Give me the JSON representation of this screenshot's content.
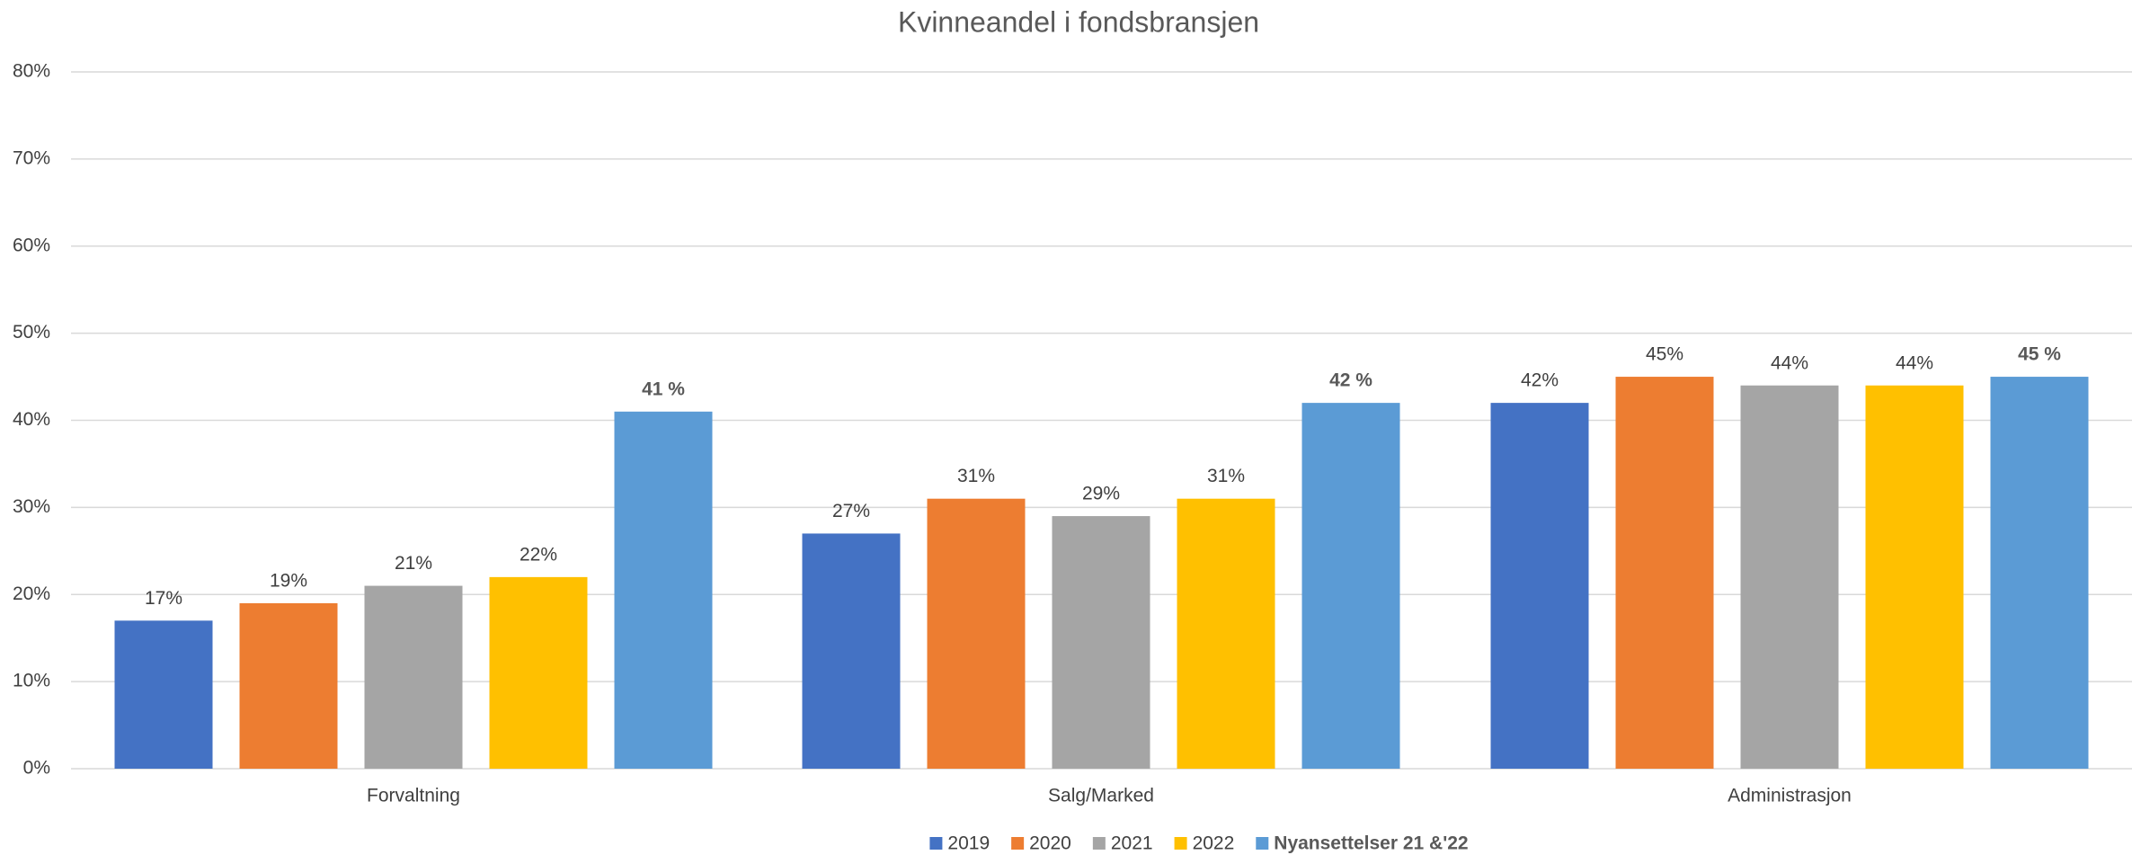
{
  "chart_data": {
    "type": "bar",
    "title": "Kvinneandel i fondsbransjen",
    "categories": [
      "Forvaltning",
      "Salg/Marked",
      "Administrasjon"
    ],
    "series": [
      {
        "name": "2019",
        "color": "#4472c4",
        "values": [
          17,
          27,
          42
        ],
        "value_labels": [
          "17%",
          "27%",
          "42%"
        ]
      },
      {
        "name": "2020",
        "color": "#ed7d31",
        "values": [
          19,
          31,
          45
        ],
        "value_labels": [
          "19%",
          "31%",
          "45%"
        ]
      },
      {
        "name": "2021",
        "color": "#a5a5a5",
        "values": [
          21,
          29,
          44
        ],
        "value_labels": [
          "21%",
          "29%",
          "44%"
        ]
      },
      {
        "name": "2022",
        "color": "#ffc000",
        "values": [
          22,
          31,
          44
        ],
        "value_labels": [
          "22%",
          "31%",
          "44%"
        ]
      },
      {
        "name": "Nyansettelser 21 &'22",
        "color": "#5b9bd5",
        "values": [
          41,
          42,
          45
        ],
        "value_labels": [
          "41 %",
          "42 %",
          "45 %"
        ]
      }
    ],
    "ylim": [
      0,
      80
    ],
    "yticks": [
      {
        "value": 0,
        "label": "0%"
      },
      {
        "value": 10,
        "label": "10%"
      },
      {
        "value": 20,
        "label": "20%"
      },
      {
        "value": 30,
        "label": "30%"
      },
      {
        "value": 40,
        "label": "40%"
      },
      {
        "value": 50,
        "label": "50%"
      },
      {
        "value": 60,
        "label": "60%"
      },
      {
        "value": 70,
        "label": "70%"
      },
      {
        "value": 80,
        "label": "80%"
      }
    ],
    "grid": true,
    "legend": "bottom"
  }
}
